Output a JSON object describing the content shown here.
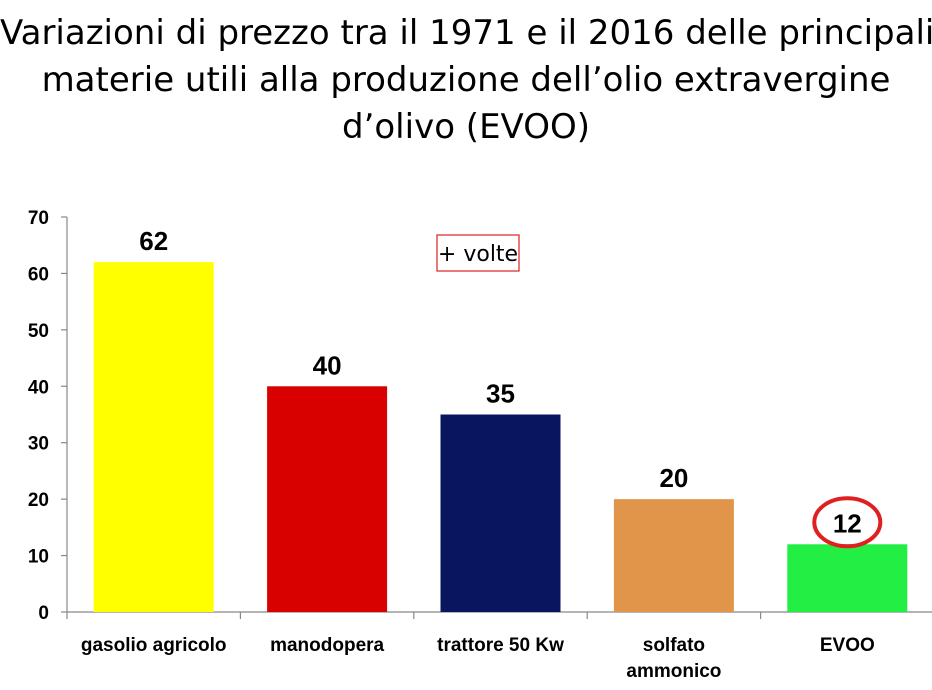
{
  "title_lines": [
    "Variazioni di prezzo tra il 1971 e il 2016 delle principali",
    "materie utili alla produzione dell’olio extravergine",
    "d’olivo (EVOO)"
  ],
  "chart_data": {
    "type": "bar",
    "categories": [
      "gasolio agricolo",
      "manodopera",
      "trattore 50 Kw",
      "solfato ammonico",
      "EVOO"
    ],
    "category_lines": [
      [
        "gasolio agricolo"
      ],
      [
        "manodopera"
      ],
      [
        "trattore 50 Kw"
      ],
      [
        "solfato",
        "ammonico"
      ],
      [
        "EVOO"
      ]
    ],
    "values": [
      62,
      40,
      35,
      20,
      12
    ],
    "data_labels": [
      "62",
      "40",
      "35",
      "20",
      "12"
    ],
    "colors": [
      "#ffff00",
      "#d90000",
      "#0a1560",
      "#e0954a",
      "#22ee44"
    ],
    "ylim": [
      0,
      70
    ],
    "yticks": [
      0,
      10,
      20,
      30,
      40,
      50,
      60,
      70
    ],
    "grid": false,
    "annotation": "+ volte",
    "annotation_border_color": "#e02020",
    "highlight": {
      "category": "EVOO",
      "color": "#e02020"
    }
  }
}
